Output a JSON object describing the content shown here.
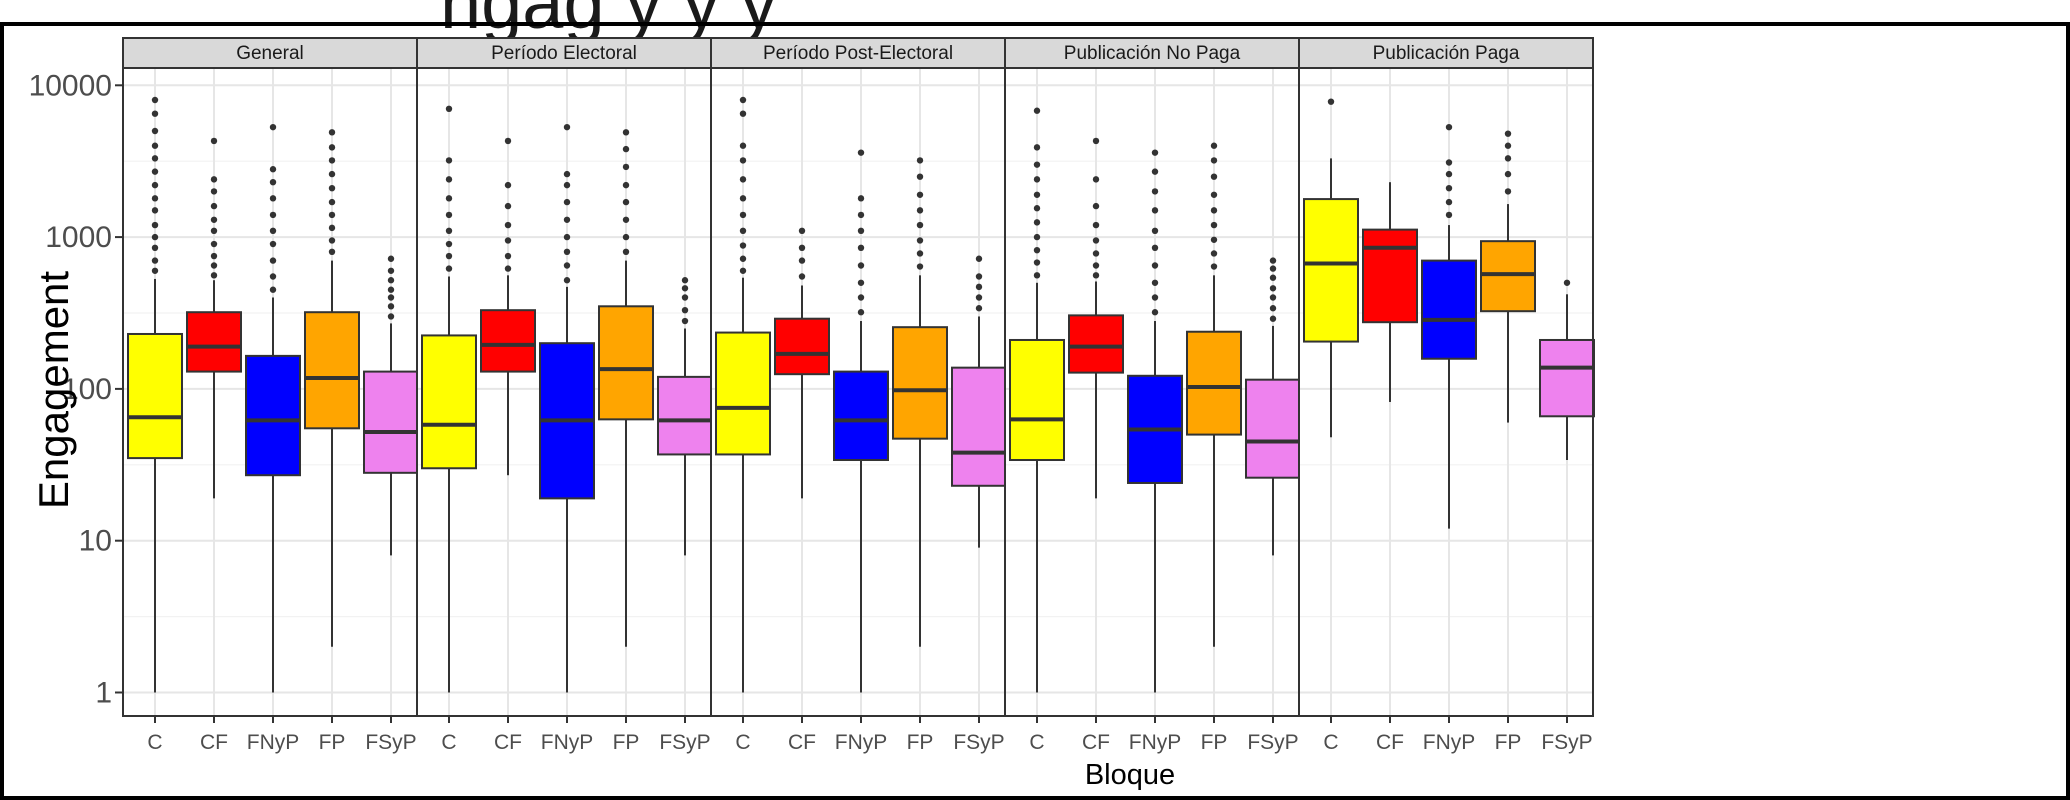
{
  "chart_data": {
    "type": "boxplot",
    "title": "",
    "partial_top_text": "ngag                                         y y y",
    "xlabel": "Bloque",
    "ylabel": "Engagement",
    "y_scale": "log10",
    "ylim": [
      0.7,
      13000
    ],
    "y_ticks": [
      1,
      10,
      100,
      1000,
      10000
    ],
    "y_tick_labels": [
      "1",
      "10",
      "100",
      "1000",
      "10000"
    ],
    "grid": true,
    "legend": "none",
    "categories": [
      "C",
      "CF",
      "FNyP",
      "FP",
      "FSyP"
    ],
    "category_colors": {
      "C": "#ffff00",
      "CF": "#ff0000",
      "FNyP": "#0000ff",
      "FP": "#ffa500",
      "FSyP": "#ee82ee"
    },
    "panels": [
      {
        "label": "General",
        "boxes": [
          {
            "cat": "C",
            "whisker_low": 1,
            "q1": 35,
            "median": 65,
            "q3": 230,
            "whisker_high": 530,
            "outliers": [
              600,
              700,
              850,
              1000,
              1200,
              1500,
              1800,
              2200,
              2700,
              3300,
              4000,
              5000,
              6500,
              8000
            ]
          },
          {
            "cat": "CF",
            "whisker_low": 19,
            "q1": 130,
            "median": 190,
            "q3": 320,
            "whisker_high": 520,
            "outliers": [
              560,
              650,
              750,
              900,
              1100,
              1300,
              1600,
              2000,
              2400,
              4300
            ]
          },
          {
            "cat": "FNyP",
            "whisker_low": 1,
            "q1": 27,
            "median": 62,
            "q3": 165,
            "whisker_high": 400,
            "outliers": [
              450,
              550,
              700,
              900,
              1100,
              1400,
              1800,
              2300,
              2800,
              5300
            ]
          },
          {
            "cat": "FP",
            "whisker_low": 2,
            "q1": 55,
            "median": 118,
            "q3": 320,
            "whisker_high": 700,
            "outliers": [
              800,
              950,
              1150,
              1400,
              1700,
              2100,
              2600,
              3200,
              3900,
              4900
            ]
          },
          {
            "cat": "FSyP",
            "whisker_low": 8,
            "q1": 28,
            "median": 52,
            "q3": 130,
            "whisker_high": 270,
            "outliers": [
              300,
              350,
              400,
              450,
              520,
              600,
              720
            ]
          }
        ]
      },
      {
        "label": "Período Electoral",
        "boxes": [
          {
            "cat": "C",
            "whisker_low": 1,
            "q1": 30,
            "median": 58,
            "q3": 225,
            "whisker_high": 550,
            "outliers": [
              620,
              750,
              900,
              1100,
              1400,
              1800,
              2400,
              3200,
              7000
            ]
          },
          {
            "cat": "CF",
            "whisker_low": 27,
            "q1": 130,
            "median": 195,
            "q3": 330,
            "whisker_high": 560,
            "outliers": [
              620,
              750,
              950,
              1200,
              1600,
              2200,
              4300
            ]
          },
          {
            "cat": "FNyP",
            "whisker_low": 1,
            "q1": 19,
            "median": 62,
            "q3": 200,
            "whisker_high": 470,
            "outliers": [
              520,
              650,
              800,
              1000,
              1300,
              1700,
              2200,
              2600,
              5300
            ]
          },
          {
            "cat": "FP",
            "whisker_low": 2,
            "q1": 63,
            "median": 135,
            "q3": 350,
            "whisker_high": 700,
            "outliers": [
              800,
              1000,
              1300,
              1700,
              2200,
              2900,
              3800,
              4900
            ]
          },
          {
            "cat": "FSyP",
            "whisker_low": 8,
            "q1": 37,
            "median": 62,
            "q3": 120,
            "whisker_high": 250,
            "outliers": [
              280,
              330,
              400,
              460,
              520
            ]
          }
        ]
      },
      {
        "label": "Período Post-Electoral",
        "boxes": [
          {
            "cat": "C",
            "whisker_low": 1,
            "q1": 37,
            "median": 75,
            "q3": 235,
            "whisker_high": 540,
            "outliers": [
              600,
              720,
              880,
              1100,
              1400,
              1800,
              2400,
              3200,
              4000,
              6500,
              8000
            ]
          },
          {
            "cat": "CF",
            "whisker_low": 19,
            "q1": 125,
            "median": 170,
            "q3": 290,
            "whisker_high": 480,
            "outliers": [
              550,
              700,
              850,
              1100
            ]
          },
          {
            "cat": "FNyP",
            "whisker_low": 1,
            "q1": 34,
            "median": 62,
            "q3": 130,
            "whisker_high": 280,
            "outliers": [
              320,
              400,
              500,
              650,
              850,
              1100,
              1400,
              1800,
              3600
            ]
          },
          {
            "cat": "FP",
            "whisker_low": 2,
            "q1": 47,
            "median": 98,
            "q3": 255,
            "whisker_high": 560,
            "outliers": [
              640,
              780,
              950,
              1200,
              1500,
              1900,
              2500,
              3200
            ]
          },
          {
            "cat": "FSyP",
            "whisker_low": 9,
            "q1": 23,
            "median": 38,
            "q3": 138,
            "whisker_high": 300,
            "outliers": [
              340,
              400,
              470,
              550,
              720
            ]
          }
        ]
      },
      {
        "label": "Publicación No Paga",
        "boxes": [
          {
            "cat": "C",
            "whisker_low": 1,
            "q1": 34,
            "median": 63,
            "q3": 210,
            "whisker_high": 500,
            "outliers": [
              560,
              680,
              820,
              1000,
              1250,
              1550,
              1900,
              2400,
              3000,
              3900,
              6800
            ]
          },
          {
            "cat": "CF",
            "whisker_low": 19,
            "q1": 128,
            "median": 190,
            "q3": 305,
            "whisker_high": 510,
            "outliers": [
              560,
              650,
              780,
              950,
              1200,
              1600,
              2400,
              4300
            ]
          },
          {
            "cat": "FNyP",
            "whisker_low": 1,
            "q1": 24,
            "median": 54,
            "q3": 122,
            "whisker_high": 280,
            "outliers": [
              320,
              400,
              500,
              650,
              850,
              1100,
              1500,
              2000,
              2700,
              3600
            ]
          },
          {
            "cat": "FP",
            "whisker_low": 2,
            "q1": 50,
            "median": 103,
            "q3": 238,
            "whisker_high": 560,
            "outliers": [
              640,
              780,
              960,
              1200,
              1500,
              1900,
              2500,
              3200,
              4000
            ]
          },
          {
            "cat": "FSyP",
            "whisker_low": 8,
            "q1": 26,
            "median": 45,
            "q3": 115,
            "whisker_high": 260,
            "outliers": [
              290,
              340,
              400,
              460,
              540,
              620,
              700
            ]
          }
        ]
      },
      {
        "label": "Publicación Paga",
        "boxes": [
          {
            "cat": "C",
            "whisker_low": 48,
            "q1": 205,
            "median": 670,
            "q3": 1780,
            "whisker_high": 3300,
            "outliers": [
              7800
            ]
          },
          {
            "cat": "CF",
            "whisker_low": 82,
            "q1": 275,
            "median": 850,
            "q3": 1120,
            "whisker_high": 2300,
            "outliers": []
          },
          {
            "cat": "FNyP",
            "whisker_low": 12,
            "q1": 158,
            "median": 285,
            "q3": 700,
            "whisker_high": 1200,
            "outliers": [
              1400,
              1700,
              2100,
              2600,
              3100,
              5300
            ]
          },
          {
            "cat": "FP",
            "whisker_low": 60,
            "q1": 325,
            "median": 570,
            "q3": 940,
            "whisker_high": 1650,
            "outliers": [
              2000,
              2600,
              3300,
              4000,
              4800
            ]
          },
          {
            "cat": "FSyP",
            "whisker_low": 34,
            "q1": 66,
            "median": 138,
            "q3": 210,
            "whisker_high": 420,
            "outliers": [
              500
            ]
          }
        ]
      }
    ]
  }
}
